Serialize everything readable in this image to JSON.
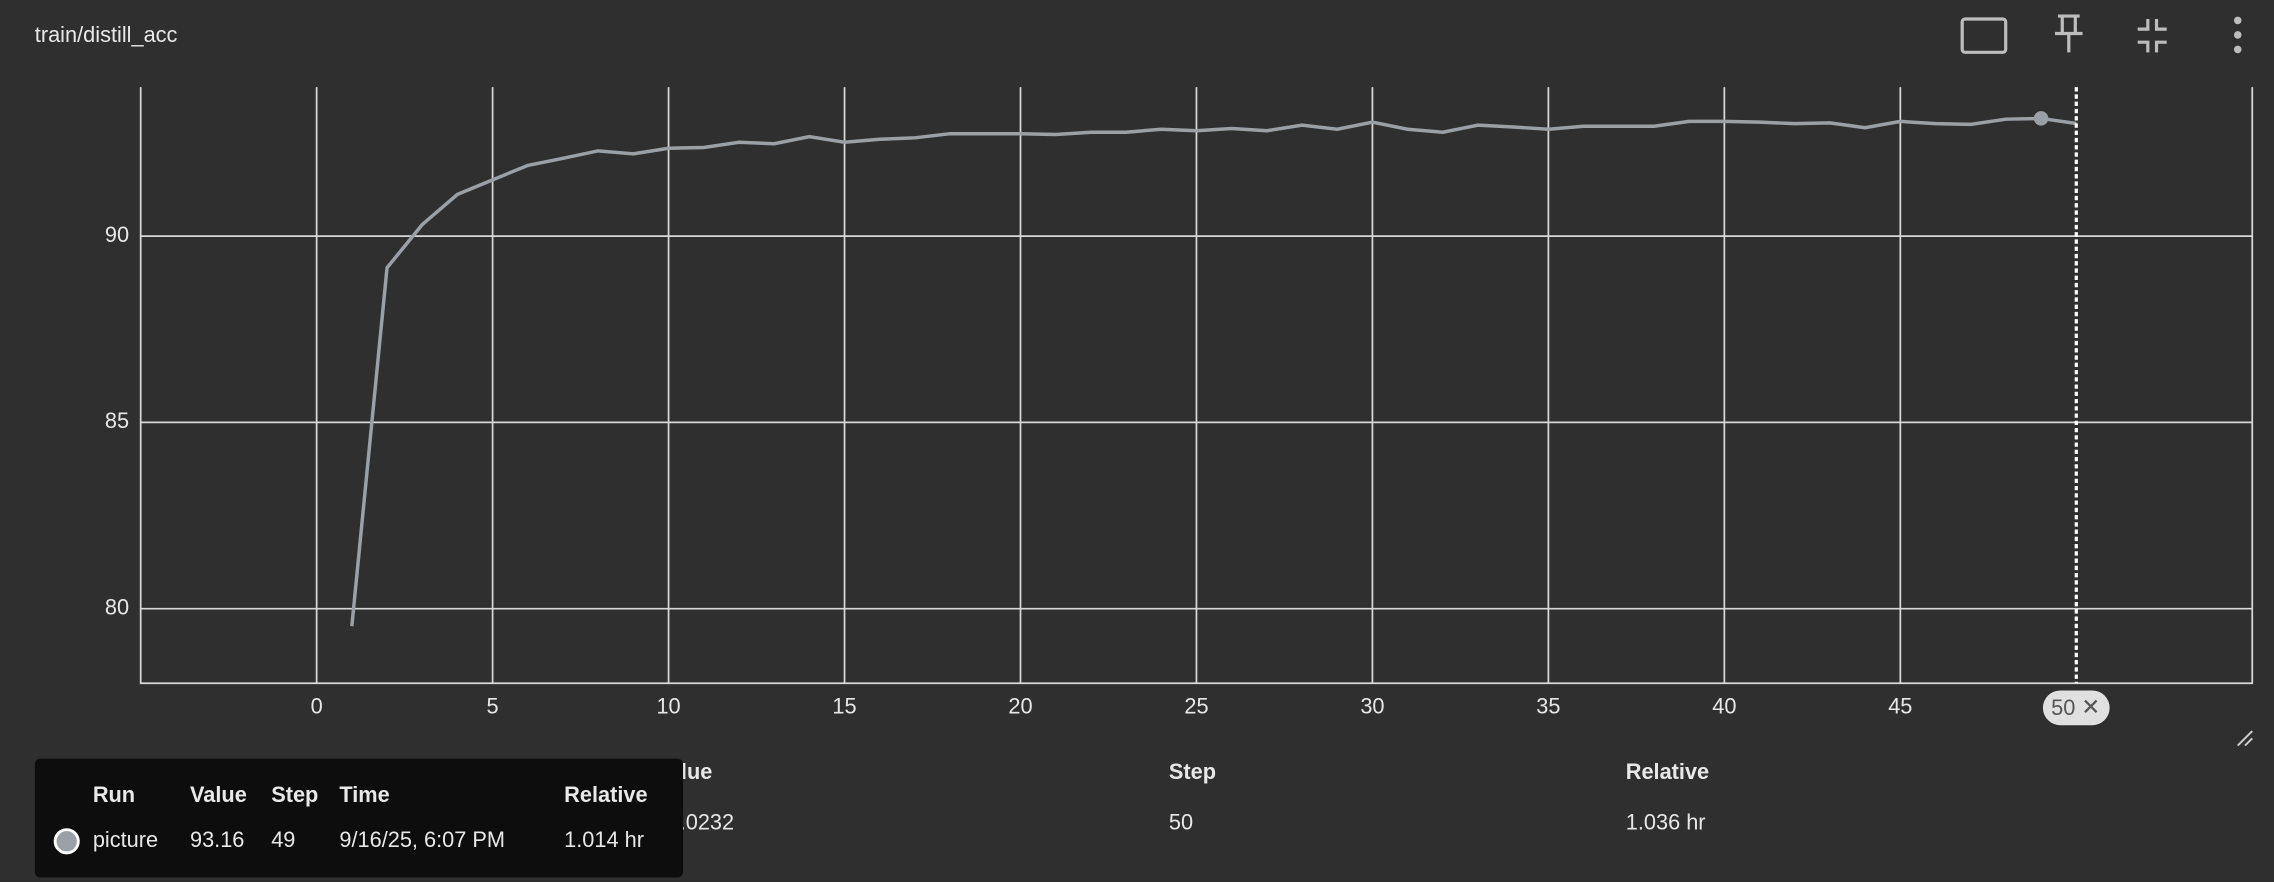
{
  "chart_data": {
    "type": "line",
    "title": "train/distill_acc",
    "x": [
      1,
      2,
      3,
      4,
      5,
      6,
      7,
      8,
      9,
      10,
      11,
      12,
      13,
      14,
      15,
      16,
      17,
      18,
      19,
      20,
      21,
      22,
      23,
      24,
      25,
      26,
      27,
      28,
      29,
      30,
      31,
      32,
      33,
      34,
      35,
      36,
      37,
      38,
      39,
      40,
      41,
      42,
      43,
      44,
      45,
      46,
      47,
      48,
      49,
      50
    ],
    "series": [
      {
        "name": "picture",
        "color": "#9aa0a6",
        "values": [
          79.53,
          89.15,
          90.31,
          91.12,
          91.51,
          91.9,
          92.09,
          92.29,
          92.21,
          92.36,
          92.38,
          92.52,
          92.48,
          92.67,
          92.52,
          92.6,
          92.64,
          92.75,
          92.75,
          92.75,
          92.73,
          92.79,
          92.79,
          92.87,
          92.83,
          92.89,
          92.83,
          92.98,
          92.87,
          93.06,
          92.87,
          92.79,
          92.98,
          92.93,
          92.87,
          92.95,
          92.95,
          92.95,
          93.08,
          93.08,
          93.06,
          93.02,
          93.04,
          92.91,
          93.08,
          93.02,
          93.0,
          93.14,
          93.16,
          93.0232
        ]
      }
    ],
    "xlim": [
      -5,
      55
    ],
    "ylim": [
      78,
      94
    ],
    "xticks": [
      0,
      5,
      10,
      15,
      20,
      25,
      30,
      35,
      40,
      45
    ],
    "yticks": [
      80,
      85,
      90
    ],
    "grid": true,
    "cursor_step": 50,
    "hover_index": 48
  },
  "table": {
    "headers": [
      "Run ↑",
      "Value",
      "Step",
      "Relative"
    ],
    "row": [
      "picture",
      "93.0232",
      "50",
      "1.036 hr"
    ]
  },
  "tooltip": {
    "headers": [
      "Run",
      "Value",
      "Step",
      "Time",
      "Relative"
    ],
    "row": [
      "picture",
      "93.16",
      "49",
      "9/16/25, 6:07 PM",
      "1.014 hr"
    ]
  }
}
